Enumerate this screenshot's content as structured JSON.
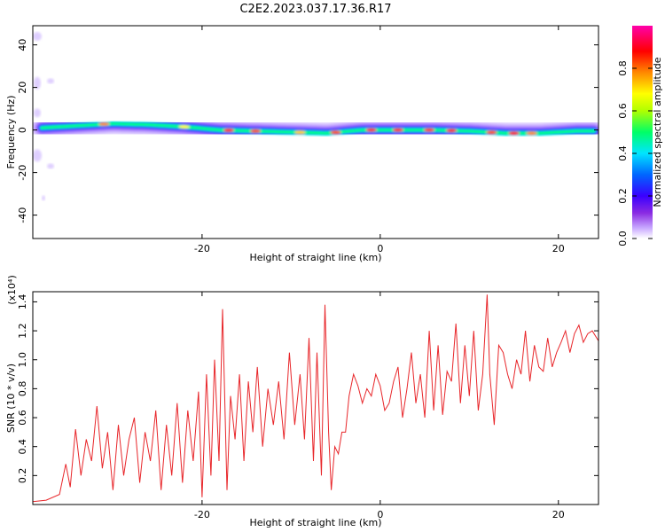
{
  "figure": {
    "title": "C2E2.2023.037.17.36.R17"
  },
  "chart_data": [
    {
      "type": "heatmap",
      "title": "C2E2.2023.037.17.36.R17",
      "xlabel": "Height of straight line (km)",
      "ylabel": "Frequency (Hz)",
      "xlim": [
        -39,
        24.5
      ],
      "ylim": [
        -51,
        49
      ],
      "xticks": [
        -20,
        0,
        20
      ],
      "yticks": [
        -40,
        -20,
        0,
        20,
        40
      ],
      "colorbar": {
        "label": "Normalized spectral amplitude",
        "range": [
          0,
          1
        ],
        "ticks": [
          "0.0",
          "0.2",
          "0.4",
          "0.6",
          "0.8"
        ],
        "colormap": [
          "#ffffff",
          "#c8a8ff",
          "#8a2be2",
          "#3a00ff",
          "#0066ff",
          "#00e5ff",
          "#00ff66",
          "#b0ff00",
          "#ffff00",
          "#ff8800",
          "#ff0000",
          "#ff00aa"
        ]
      },
      "ridge": {
        "x": [
          -38,
          -34,
          -30,
          -26,
          -22,
          -18,
          -14,
          -10,
          -6,
          -2,
          2,
          6,
          10,
          14,
          18,
          22,
          24
        ],
        "frequency": [
          1,
          2,
          3,
          2.5,
          1.5,
          0,
          -0.5,
          -1,
          -1.5,
          0,
          0,
          0,
          -0.5,
          -1.5,
          -1.5,
          -0.5,
          -0.5
        ]
      }
    },
    {
      "type": "line",
      "xlabel": "Height of straight line (km)",
      "ylabel": "SNR (10 * v/v)",
      "y_multiplier": "(x10⁴)",
      "xlim": [
        -39,
        24.5
      ],
      "ylim": [
        0,
        1.47
      ],
      "xticks": [
        -20,
        0,
        20
      ],
      "yticks": [
        0.2,
        0.4,
        0.6,
        0.8,
        1.0,
        1.2,
        1.4
      ],
      "series": [
        {
          "color": "#e8262a",
          "x": [
            -39,
            -37.5,
            -36,
            -35.3,
            -34.8,
            -34.2,
            -33.6,
            -33,
            -32.4,
            -31.8,
            -31.2,
            -30.6,
            -30,
            -29.4,
            -28.8,
            -28.2,
            -27.6,
            -27,
            -26.4,
            -25.8,
            -25.2,
            -24.6,
            -24,
            -23.4,
            -22.8,
            -22.2,
            -21.6,
            -21,
            -20.4,
            -20,
            -19.5,
            -19,
            -18.6,
            -18.1,
            -17.7,
            -17.2,
            -16.8,
            -16.3,
            -15.8,
            -15.3,
            -14.8,
            -14.3,
            -13.8,
            -13.2,
            -12.6,
            -12,
            -11.4,
            -10.8,
            -10.2,
            -9.6,
            -9,
            -8.5,
            -8,
            -7.5,
            -7.1,
            -6.6,
            -6.2,
            -5.8,
            -5.5,
            -5.1,
            -4.7,
            -4.3,
            -3.9,
            -3.5,
            -3,
            -2.5,
            -2,
            -1.5,
            -1,
            -0.5,
            0,
            0.5,
            1,
            1.5,
            2,
            2.5,
            3,
            3.5,
            4,
            4.5,
            5,
            5.5,
            6,
            6.5,
            7,
            7.5,
            8,
            8.5,
            9,
            9.5,
            10,
            10.5,
            11,
            11.5,
            12,
            12.3,
            12.8,
            13.3,
            13.8,
            14.3,
            14.8,
            15.3,
            15.8,
            16.3,
            16.8,
            17.3,
            17.8,
            18.3,
            18.8,
            19.3,
            19.8,
            20.3,
            20.8,
            21.3,
            21.8,
            22.3,
            22.8,
            23.3,
            23.8,
            24.5
          ],
          "y": [
            0.02,
            0.03,
            0.07,
            0.28,
            0.12,
            0.52,
            0.2,
            0.45,
            0.3,
            0.68,
            0.25,
            0.5,
            0.1,
            0.55,
            0.2,
            0.45,
            0.6,
            0.15,
            0.5,
            0.3,
            0.65,
            0.1,
            0.55,
            0.2,
            0.7,
            0.15,
            0.65,
            0.3,
            0.78,
            0.05,
            0.9,
            0.2,
            1.0,
            0.3,
            1.35,
            0.1,
            0.75,
            0.45,
            0.9,
            0.3,
            0.85,
            0.5,
            0.95,
            0.4,
            0.8,
            0.55,
            0.85,
            0.45,
            1.05,
            0.55,
            0.9,
            0.45,
            1.15,
            0.3,
            1.05,
            0.2,
            1.38,
            0.5,
            0.1,
            0.4,
            0.35,
            0.5,
            0.5,
            0.75,
            0.9,
            0.82,
            0.7,
            0.8,
            0.75,
            0.9,
            0.82,
            0.65,
            0.7,
            0.85,
            0.95,
            0.6,
            0.8,
            1.05,
            0.7,
            0.9,
            0.6,
            1.2,
            0.65,
            1.1,
            0.62,
            0.92,
            0.85,
            1.25,
            0.7,
            1.1,
            0.75,
            1.2,
            0.65,
            0.9,
            1.45,
            0.9,
            0.55,
            1.1,
            1.05,
            0.9,
            0.8,
            1.0,
            0.9,
            1.2,
            0.85,
            1.1,
            0.95,
            0.92,
            1.15,
            0.95,
            1.05,
            1.12,
            1.2,
            1.05,
            1.18,
            1.24,
            1.12,
            1.18,
            1.2,
            1.13
          ]
        }
      ]
    }
  ]
}
